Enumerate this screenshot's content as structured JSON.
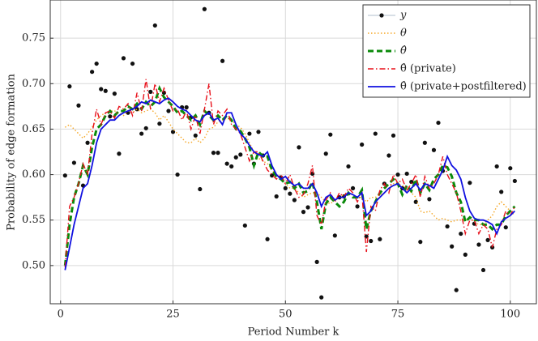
{
  "chart_data": {
    "type": "line",
    "x_label": "Period Number k",
    "y_label": "Probability of edge formation",
    "xlim": [
      -2.3,
      105.8
    ],
    "ylim": [
      0.458,
      0.792
    ],
    "xticks": [
      0,
      25,
      50,
      75,
      100
    ],
    "yticks": [
      {
        "value": 0.5,
        "label": "0.50"
      },
      0.55,
      {
        "value": 0.6,
        "label": "0.60"
      },
      0.65,
      {
        "value": 0.7,
        "label": "0.70"
      },
      0.75
    ],
    "grid": true,
    "legend": "upper right",
    "x": [
      1,
      2,
      3,
      4,
      5,
      6,
      7,
      8,
      9,
      10,
      11,
      12,
      13,
      14,
      15,
      16,
      17,
      18,
      19,
      20,
      21,
      22,
      23,
      24,
      25,
      26,
      27,
      28,
      29,
      30,
      31,
      32,
      33,
      34,
      35,
      36,
      37,
      38,
      39,
      40,
      41,
      42,
      43,
      44,
      45,
      46,
      47,
      48,
      49,
      50,
      51,
      52,
      53,
      54,
      55,
      56,
      57,
      58,
      59,
      60,
      61,
      62,
      63,
      64,
      65,
      66,
      67,
      68,
      69,
      70,
      71,
      72,
      73,
      74,
      75,
      76,
      77,
      78,
      79,
      80,
      81,
      82,
      83,
      84,
      85,
      86,
      87,
      88,
      89,
      90,
      91,
      92,
      93,
      94,
      95,
      96,
      97,
      98,
      99,
      100,
      101
    ],
    "series": [
      {
        "name": "y",
        "color": "#111111",
        "line_style": "none",
        "marker": "dot",
        "values": [
          0.599,
          0.697,
          0.613,
          0.676,
          0.588,
          0.635,
          0.713,
          0.722,
          0.694,
          0.692,
          0.664,
          0.689,
          0.623,
          0.728,
          0.668,
          0.722,
          0.672,
          0.645,
          0.651,
          0.691,
          0.764,
          0.656,
          0.69,
          0.67,
          0.647,
          0.6,
          0.674,
          0.674,
          0.663,
          0.643,
          0.584,
          0.782,
          0.668,
          0.624,
          0.624,
          0.725,
          0.612,
          0.609,
          0.619,
          0.622,
          0.544,
          0.645,
          0.612,
          0.647,
          0.621,
          0.529,
          0.599,
          0.576,
          0.597,
          0.585,
          0.579,
          0.572,
          0.63,
          0.559,
          0.564,
          0.601,
          0.504,
          0.465,
          0.623,
          0.644,
          0.533,
          0.575,
          0.576,
          0.609,
          0.585,
          0.565,
          0.633,
          0.532,
          0.527,
          0.645,
          0.529,
          0.59,
          0.621,
          0.643,
          0.6,
          0.585,
          0.601,
          0.592,
          0.57,
          0.526,
          0.635,
          0.573,
          0.627,
          0.657,
          0.604,
          0.543,
          0.521,
          0.473,
          0.535,
          0.512,
          0.591,
          0.546,
          0.523,
          0.495,
          0.528,
          0.52,
          0.609,
          0.581,
          0.542,
          0.607,
          0.593
        ]
      },
      {
        "name": "θ",
        "color": "#f5a623",
        "line_style": "dotted",
        "values": [
          0.652,
          0.655,
          0.65,
          0.645,
          0.64,
          0.645,
          0.652,
          0.66,
          0.665,
          0.668,
          0.67,
          0.67,
          0.668,
          0.665,
          0.67,
          0.668,
          0.672,
          0.668,
          0.67,
          0.672,
          0.668,
          0.66,
          0.665,
          0.658,
          0.65,
          0.645,
          0.64,
          0.635,
          0.635,
          0.64,
          0.635,
          0.64,
          0.65,
          0.652,
          0.658,
          0.66,
          0.662,
          0.66,
          0.655,
          0.652,
          0.645,
          0.635,
          0.625,
          0.618,
          0.615,
          0.612,
          0.605,
          0.6,
          0.595,
          0.59,
          0.585,
          0.585,
          0.58,
          0.575,
          0.578,
          0.58,
          0.58,
          0.575,
          0.57,
          0.568,
          0.572,
          0.575,
          0.578,
          0.58,
          0.578,
          0.575,
          0.575,
          0.57,
          0.575,
          0.575,
          0.578,
          0.58,
          0.585,
          0.59,
          0.59,
          0.588,
          0.585,
          0.58,
          0.575,
          0.56,
          0.558,
          0.56,
          0.555,
          0.55,
          0.552,
          0.55,
          0.548,
          0.55,
          0.55,
          0.55,
          0.552,
          0.548,
          0.545,
          0.545,
          0.55,
          0.555,
          0.565,
          0.57,
          0.565,
          0.56,
          0.555
        ]
      },
      {
        "name": "θ̂",
        "color": "#0a8a0a",
        "line_style": "dashed",
        "values": [
          0.5,
          0.545,
          0.575,
          0.59,
          0.61,
          0.6,
          0.63,
          0.65,
          0.655,
          0.665,
          0.67,
          0.665,
          0.67,
          0.67,
          0.675,
          0.672,
          0.678,
          0.672,
          0.68,
          0.675,
          0.68,
          0.695,
          0.685,
          0.68,
          0.675,
          0.668,
          0.67,
          0.665,
          0.66,
          0.665,
          0.655,
          0.67,
          0.665,
          0.66,
          0.665,
          0.66,
          0.665,
          0.66,
          0.65,
          0.648,
          0.64,
          0.63,
          0.61,
          0.625,
          0.62,
          0.62,
          0.605,
          0.598,
          0.595,
          0.59,
          0.592,
          0.585,
          0.59,
          0.58,
          0.582,
          0.592,
          0.57,
          0.54,
          0.568,
          0.575,
          0.57,
          0.565,
          0.57,
          0.58,
          0.575,
          0.575,
          0.583,
          0.54,
          0.56,
          0.57,
          0.58,
          0.585,
          0.59,
          0.595,
          0.59,
          0.578,
          0.588,
          0.582,
          0.595,
          0.58,
          0.59,
          0.583,
          0.595,
          0.6,
          0.61,
          0.608,
          0.598,
          0.58,
          0.57,
          0.548,
          0.553,
          0.55,
          0.55,
          0.545,
          0.545,
          0.54,
          0.545,
          0.545,
          0.555,
          0.56,
          0.565
        ]
      },
      {
        "name": "θ̂ (private)",
        "color": "#e8101a",
        "line_style": "dashdot",
        "values": [
          0.498,
          0.565,
          0.575,
          0.59,
          0.612,
          0.6,
          0.645,
          0.672,
          0.655,
          0.668,
          0.67,
          0.662,
          0.675,
          0.672,
          0.678,
          0.665,
          0.69,
          0.67,
          0.705,
          0.672,
          0.7,
          0.68,
          0.695,
          0.682,
          0.67,
          0.672,
          0.66,
          0.67,
          0.65,
          0.665,
          0.645,
          0.672,
          0.7,
          0.655,
          0.67,
          0.665,
          0.672,
          0.655,
          0.65,
          0.645,
          0.63,
          0.615,
          0.625,
          0.625,
          0.615,
          0.605,
          0.6,
          0.595,
          0.6,
          0.59,
          0.6,
          0.585,
          0.575,
          0.578,
          0.59,
          0.61,
          0.555,
          0.545,
          0.572,
          0.58,
          0.57,
          0.58,
          0.575,
          0.585,
          0.58,
          0.57,
          0.58,
          0.515,
          0.565,
          0.56,
          0.583,
          0.59,
          0.58,
          0.6,
          0.59,
          0.595,
          0.583,
          0.59,
          0.6,
          0.575,
          0.598,
          0.585,
          0.59,
          0.6,
          0.62,
          0.6,
          0.59,
          0.58,
          0.56,
          0.535,
          0.55,
          0.55,
          0.535,
          0.545,
          0.54,
          0.52,
          0.54,
          0.545,
          0.56,
          0.555,
          0.565
        ]
      },
      {
        "name": "θ̂ (private+postfiltered)",
        "color": "#1010e0",
        "line_style": "solid",
        "values": [
          0.495,
          0.52,
          0.545,
          0.565,
          0.585,
          0.59,
          0.61,
          0.635,
          0.65,
          0.655,
          0.66,
          0.66,
          0.665,
          0.668,
          0.67,
          0.672,
          0.675,
          0.68,
          0.678,
          0.682,
          0.68,
          0.678,
          0.682,
          0.684,
          0.68,
          0.675,
          0.672,
          0.67,
          0.665,
          0.66,
          0.658,
          0.665,
          0.668,
          0.66,
          0.662,
          0.655,
          0.668,
          0.668,
          0.655,
          0.645,
          0.64,
          0.632,
          0.625,
          0.622,
          0.62,
          0.625,
          0.61,
          0.6,
          0.595,
          0.598,
          0.592,
          0.588,
          0.59,
          0.585,
          0.585,
          0.59,
          0.58,
          0.565,
          0.575,
          0.578,
          0.572,
          0.575,
          0.575,
          0.58,
          0.578,
          0.575,
          0.58,
          0.555,
          0.56,
          0.57,
          0.575,
          0.58,
          0.585,
          0.588,
          0.59,
          0.585,
          0.58,
          0.585,
          0.59,
          0.583,
          0.59,
          0.588,
          0.585,
          0.595,
          0.605,
          0.62,
          0.61,
          0.605,
          0.595,
          0.575,
          0.56,
          0.552,
          0.55,
          0.55,
          0.548,
          0.545,
          0.535,
          0.548,
          0.552,
          0.555,
          0.56
        ]
      }
    ]
  }
}
